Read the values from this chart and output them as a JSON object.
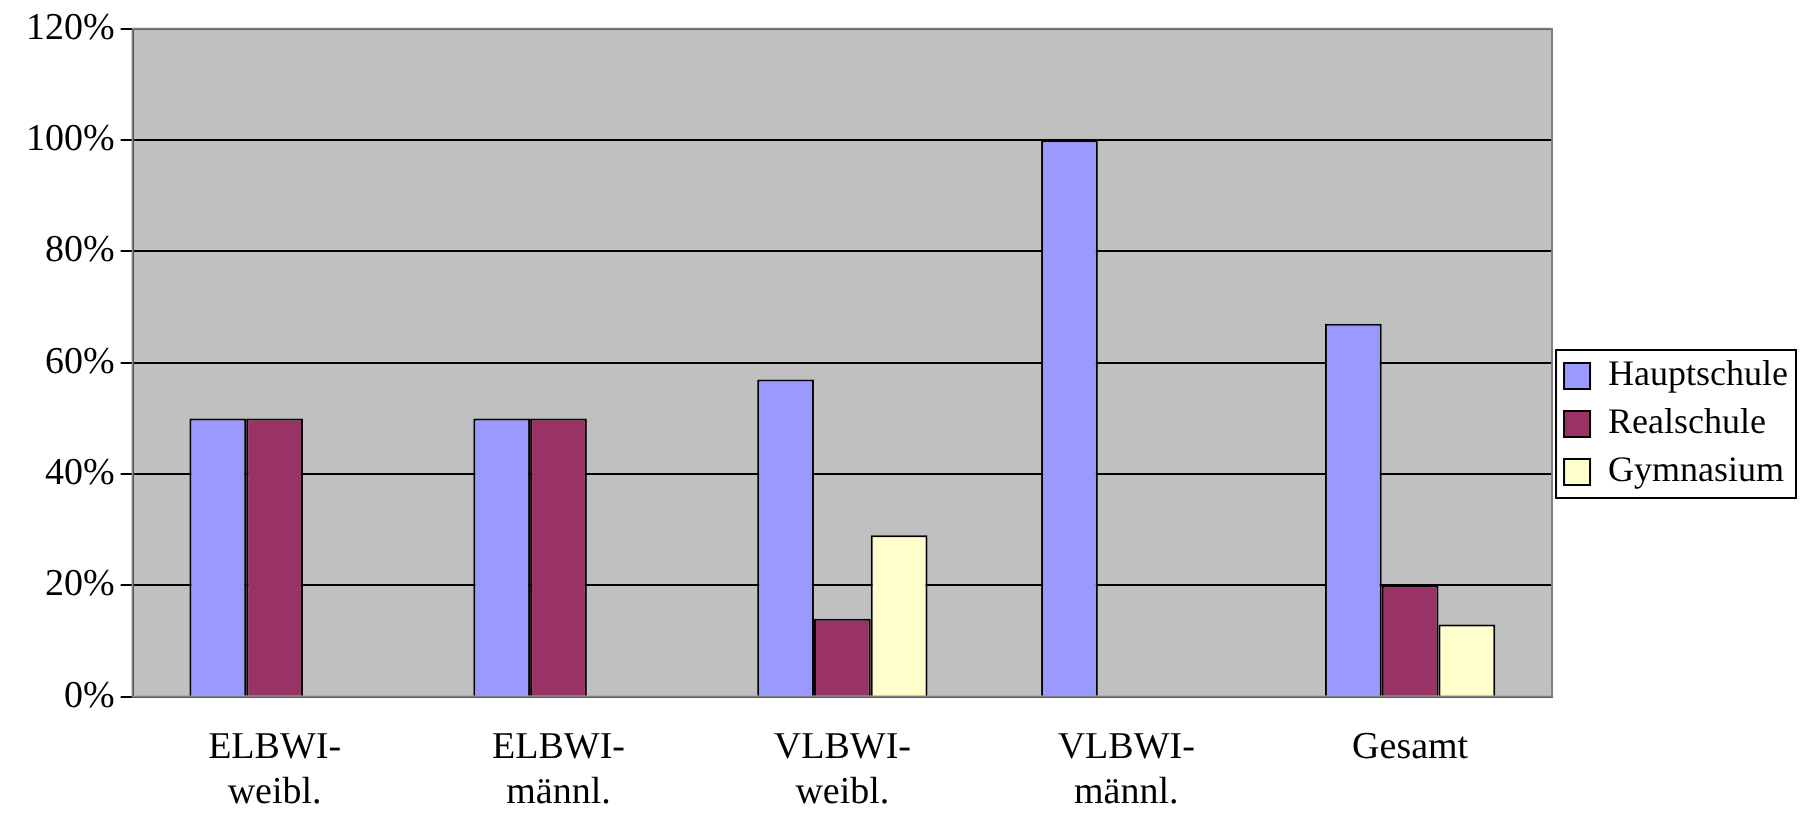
{
  "chart_data": {
    "type": "bar",
    "categories": [
      "ELBWI-weibl.",
      "ELBWI-männl.",
      "VLBWI-weibl.",
      "VLBWI-männl.",
      "Gesamt"
    ],
    "series": [
      {
        "name": "Hauptschule",
        "color": "#9999ff",
        "values": [
          50,
          50,
          57,
          100,
          67
        ]
      },
      {
        "name": "Realschule",
        "color": "#993366",
        "values": [
          50,
          50,
          14,
          0,
          20
        ]
      },
      {
        "name": "Gymnasium",
        "color": "#ffffcc",
        "values": [
          0,
          0,
          29,
          0,
          13
        ]
      }
    ],
    "ylim": [
      0,
      120
    ],
    "yticks": [
      {
        "value": 0,
        "label": "0%"
      },
      {
        "value": 20,
        "label": "20%"
      },
      {
        "value": 40,
        "label": "40%"
      },
      {
        "value": 60,
        "label": "60%"
      },
      {
        "value": 80,
        "label": "80%"
      },
      {
        "value": 100,
        "label": "100%"
      },
      {
        "value": 120,
        "label": "120%"
      }
    ],
    "grid": "y",
    "legend": "right"
  }
}
